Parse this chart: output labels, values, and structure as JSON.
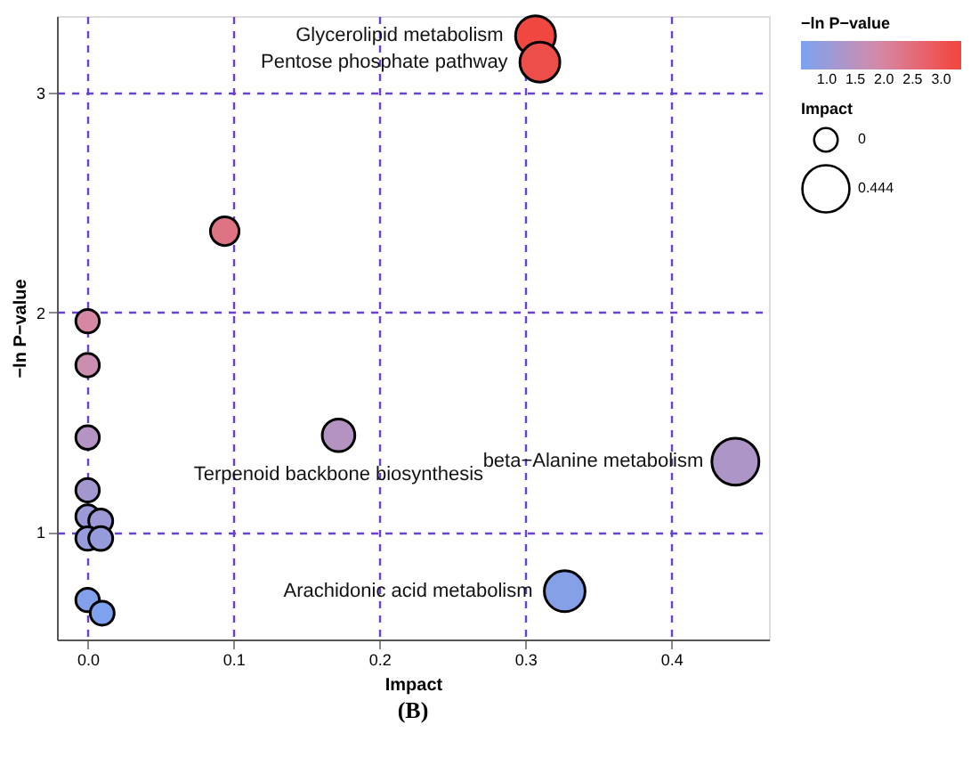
{
  "chart_data": {
    "type": "bubble",
    "xlabel": "Impact",
    "ylabel": "−ln P−value",
    "legend_title": "Impact",
    "clabel": "−ln P−value",
    "x": [
      0.307,
      0.31,
      0.094,
      0,
      0,
      0,
      0.172,
      0,
      0,
      0.009,
      0,
      0.009,
      0,
      0.01,
      0.327,
      0.444
    ],
    "values": [
      3.26,
      3.14,
      2.37,
      1.96,
      1.76,
      1.43,
      1.44,
      1.19,
      1.07,
      1.05,
      0.97,
      0.97,
      0.69,
      0.63,
      0.73,
      1.32
    ],
    "cvalues": [
      3.26,
      3.14,
      2.37,
      1.96,
      1.76,
      1.43,
      1.44,
      1.19,
      1.07,
      1.05,
      0.97,
      0.97,
      0.69,
      0.63,
      0.73,
      1.32
    ],
    "sizes": [
      0.72,
      0.72,
      0.37,
      0.25,
      0.25,
      0.25,
      0.48,
      0.25,
      0.25,
      0.26,
      0.25,
      0.26,
      0.25,
      0.26,
      0.75,
      1
    ],
    "size_legend": [
      {
        "value": 0.25,
        "label": "0"
      },
      {
        "value": 1,
        "label": "0.444"
      }
    ],
    "clim": [
      0.55,
      3.35
    ],
    "cticks": [
      {
        "value": 1,
        "label": "1.0"
      },
      {
        "value": 1.5,
        "label": "1.5"
      },
      {
        "value": 2,
        "label": "2.0"
      },
      {
        "value": 2.5,
        "label": "2.5"
      },
      {
        "value": 3,
        "label": "3.0"
      }
    ],
    "colors": [
      "#f04840",
      "#ee4e49",
      "#de7384",
      "#d587a3",
      "#cb8db0",
      "#b593c2",
      "#b593c1",
      "#a497cf",
      "#9c9ad6",
      "#9b9ad7",
      "#969cdb",
      "#969cdb",
      "#83a1eb",
      "#7fa2ee",
      "#86a0e8",
      "#ad95c8"
    ],
    "xlim": [
      -0.021,
      0.467
    ],
    "xticks": [
      {
        "value": 0,
        "label": "0.0"
      },
      0.1,
      0.2,
      0.3,
      0.4
    ],
    "ylim": [
      0.51,
      3.35
    ],
    "yticks": [
      1,
      2,
      3
    ],
    "grid": true,
    "annotations": [
      {
        "text": "Glycerolipid metabolism",
        "x": 0.307,
        "y": 3.26
      },
      {
        "text": "Pentose phosphate pathway",
        "x": 0.31,
        "y": 3.14
      },
      {
        "text": "Terpenoid backbone biosynthesis",
        "x": 0.172,
        "y": 1.44
      },
      {
        "text": "beta−Alanine metabolism",
        "x": 0.444,
        "y": 1.32
      },
      {
        "text": "Arachidonic acid metabolism",
        "x": 0.327,
        "y": 0.73
      },
      "(B)"
    ]
  }
}
